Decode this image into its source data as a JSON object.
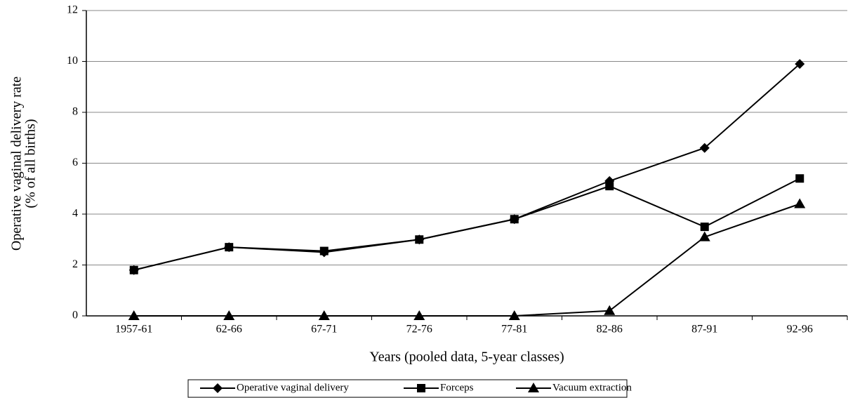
{
  "chart_data": {
    "type": "line",
    "y_label": [
      "Operative vaginal delivery rate",
      "(% of all births)"
    ],
    "x_label": "Years (pooled data, 5-year classes)",
    "categories": [
      "1957-61",
      "62-66",
      "67-71",
      "72-76",
      "77-81",
      "82-86",
      "87-91",
      "92-96"
    ],
    "series": [
      {
        "name": "Operative vaginal delivery",
        "color": "#000000",
        "marker": "diamond",
        "values": [
          1.8,
          2.7,
          2.5,
          3.0,
          3.8,
          5.3,
          6.6,
          9.9
        ]
      },
      {
        "name": "Forceps",
        "color": "#000000",
        "marker": "square",
        "values": [
          1.8,
          2.7,
          2.55,
          3.0,
          3.8,
          5.1,
          3.5,
          5.4
        ]
      },
      {
        "name": "Vacuum extraction",
        "color": "#000000",
        "marker": "triangle",
        "values": [
          0,
          0,
          0,
          0,
          0,
          0.2,
          3.1,
          4.4
        ]
      }
    ],
    "ylim": [
      0,
      12
    ],
    "yticks": [
      0,
      2,
      4,
      6,
      8,
      10,
      12
    ],
    "grid": true,
    "legend": "bottom"
  }
}
